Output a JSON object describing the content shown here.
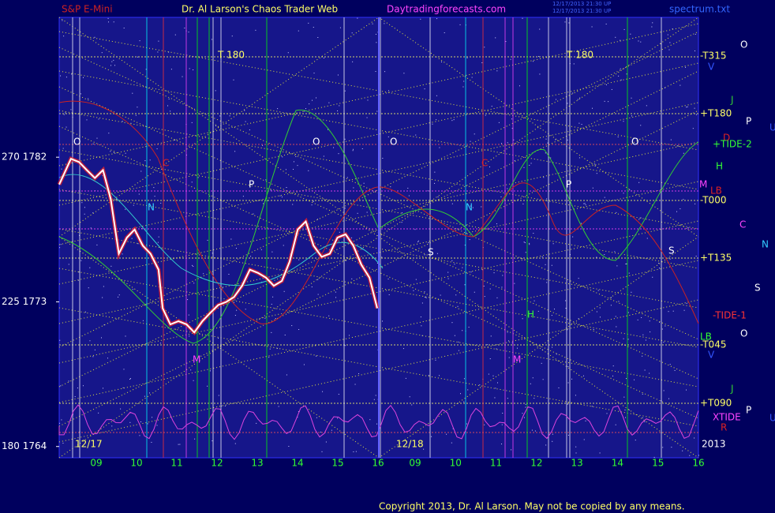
{
  "chart_data": {
    "type": "line",
    "titles": [
      "S&P E-Mini",
      "Dr. Al Larson's Chaos Trader Web",
      "Daytradingforecasts.com",
      "spectrum.txt"
    ],
    "timestamps": [
      "12/17/2013 21:30 UP",
      "12/17/2013 21:30 UP"
    ],
    "copyright": "Copyright 2013, Dr. Al Larson. May not be copied by any means.",
    "ylim": [
      1763.3,
      1790.7
    ],
    "yticks": [
      {
        "value": 1782,
        "label": "270  1782"
      },
      {
        "value": 1773,
        "label": "225  1773"
      },
      {
        "value": 1764,
        "label": "180  1764"
      }
    ],
    "x_labels": [
      "09",
      "10",
      "11",
      "12",
      "13",
      "14",
      "15",
      "16",
      "09",
      "10",
      "11",
      "12",
      "13",
      "14",
      "15",
      "16"
    ],
    "dates": [
      "12/17",
      "12/18",
      "2013"
    ],
    "xlim": [
      8.08,
      15.92
    ],
    "series": [
      {
        "name": "S&P E-Mini",
        "color": "#ffffff",
        "x": [
          8.08,
          8.37,
          8.57,
          8.76,
          8.96,
          9.16,
          9.35,
          9.55,
          9.75,
          9.94,
          10.14,
          10.33,
          10.53,
          10.63,
          10.82,
          11.02,
          11.22,
          11.41,
          11.61,
          11.8,
          12.0,
          12.2,
          12.39,
          12.59,
          12.78,
          12.98,
          13.18,
          13.37,
          13.57,
          13.76,
          13.96,
          14.16,
          14.35,
          14.55,
          14.75,
          14.94,
          15.14,
          15.33,
          15.53,
          15.73,
          15.92
        ],
        "values": [
          1780.3,
          1781.9,
          1781.7,
          1781.2,
          1780.7,
          1781.2,
          1779.4,
          1776.0,
          1777.0,
          1777.5,
          1776.5,
          1776.0,
          1775.0,
          1772.6,
          1771.6,
          1771.8,
          1771.6,
          1771.1,
          1771.8,
          1772.3,
          1772.8,
          1773.0,
          1773.3,
          1774.0,
          1775.0,
          1774.8,
          1774.5,
          1774.0,
          1774.3,
          1775.5,
          1777.5,
          1778.0,
          1776.5,
          1775.8,
          1776.0,
          1777.0,
          1777.2,
          1776.5,
          1775.3,
          1774.5,
          1772.6
        ]
      }
    ],
    "right_labels": [
      "O",
      "-T315",
      "V",
      "J",
      "+T180",
      "P",
      "U",
      "D",
      "+TIDE-2",
      "H",
      "M",
      "LB",
      "-T000",
      "C",
      "N",
      "+T135",
      "S",
      "-TIDE-1",
      "O",
      "LB",
      "-T045",
      "V",
      "J",
      "+T090",
      "P",
      "XTIDE",
      "U",
      "R"
    ],
    "chart_labels": [
      "O",
      "O",
      "O",
      "O",
      "P",
      "P",
      "N",
      "N",
      "C",
      "C",
      "M",
      "M",
      "H",
      "S",
      "S",
      "T  180",
      "T  180"
    ]
  }
}
